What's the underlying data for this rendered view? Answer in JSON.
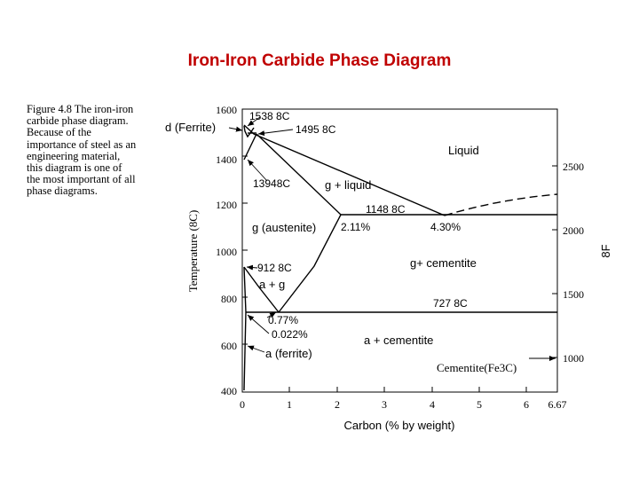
{
  "title": "Iron-Iron Carbide Phase Diagram",
  "caption": [
    "Figure 4.8  The iron-iron",
    "carbide phase diagram.",
    "Because of the",
    "importance of steel as an",
    "engineering material,",
    "this diagram is one of",
    "the most important of all",
    "phase diagrams."
  ],
  "y_axis_label": "Temperature   (8C)",
  "right_axis_label": "8F",
  "x_axis_label": "Carbon   (%   by   weight)",
  "y_ticks": [
    "1600",
    "1400",
    "1200",
    "1000",
    "800",
    "600",
    "400"
  ],
  "f_ticks": [
    "2500",
    "2000",
    "1500",
    "1000"
  ],
  "x_ticks": [
    "0",
    "1",
    "2",
    "3",
    "4",
    "5",
    "6",
    "6.67"
  ],
  "labels": {
    "t1538": "1538   8C",
    "ferrite_delta": "d (Ferrite)",
    "t1495": "1495   8C",
    "liquid": "Liquid",
    "t1394": "13948C",
    "g_liquid": "g  +  liquid",
    "t1148": "1148   8C",
    "austenite": "g (austenite)",
    "c211": "2.11%",
    "c430": "4.30%",
    "g_cementite": "g+   cementite",
    "t912": "912   8C",
    "a_g": "a + g",
    "t727": "727   8C",
    "c077": "0.77%",
    "c0022": "0.022%",
    "a_cementite": "a +   cementite",
    "a_ferrite": "a (ferrite)",
    "cementite": "Cementite(Fe3C)"
  }
}
